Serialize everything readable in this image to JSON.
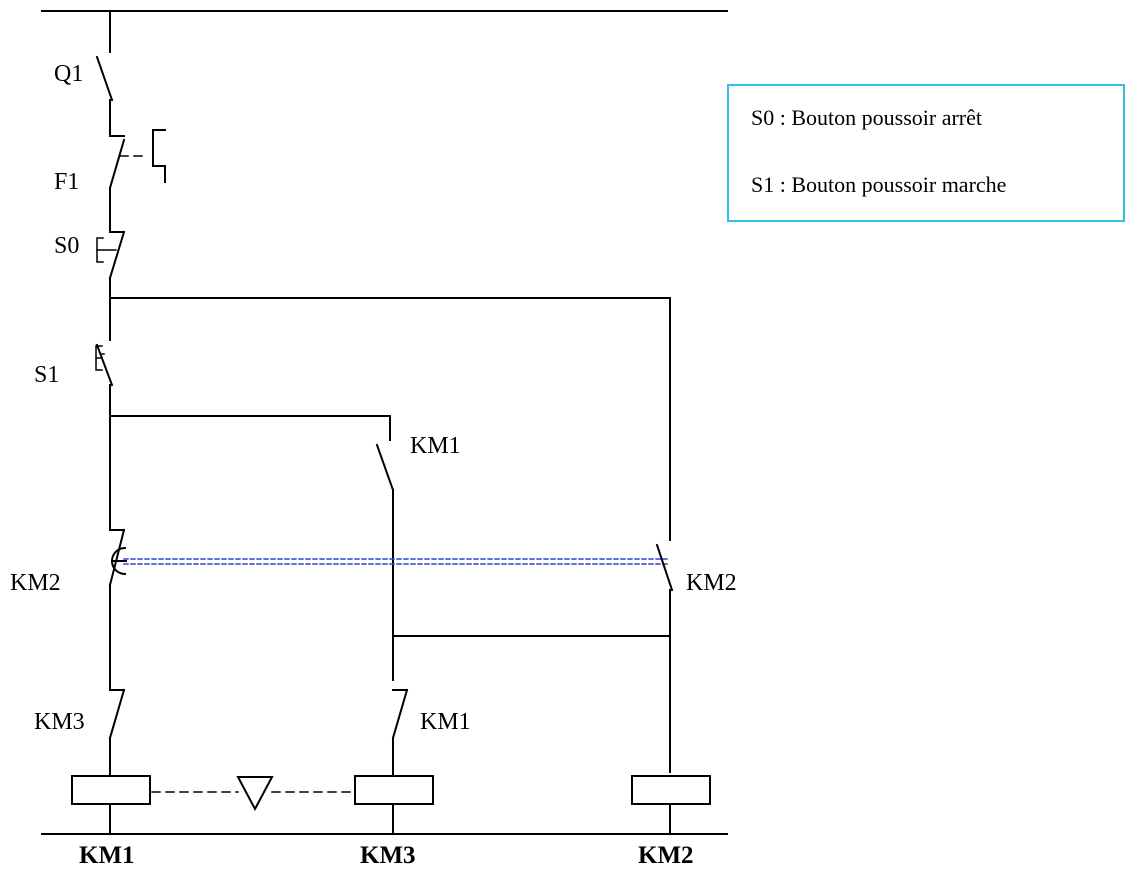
{
  "components": {
    "q1": "Q1",
    "f1": "F1",
    "s0": "S0",
    "s1": "S1",
    "km1_hold": "KM1",
    "km2_interlock": "KM2",
    "km2_contact": "KM2",
    "km3_interlock": "KM3",
    "km1_interlock": "KM1"
  },
  "coils": {
    "km1": "KM1",
    "km3": "KM3",
    "km2": "KM2"
  },
  "legend": {
    "s0": "S0 : Bouton poussoir arrêt",
    "s1": "S1 : Bouton poussoir marche"
  },
  "colors": {
    "legend_border": "#33c0e6",
    "mechanical_link": "#3344cc"
  }
}
